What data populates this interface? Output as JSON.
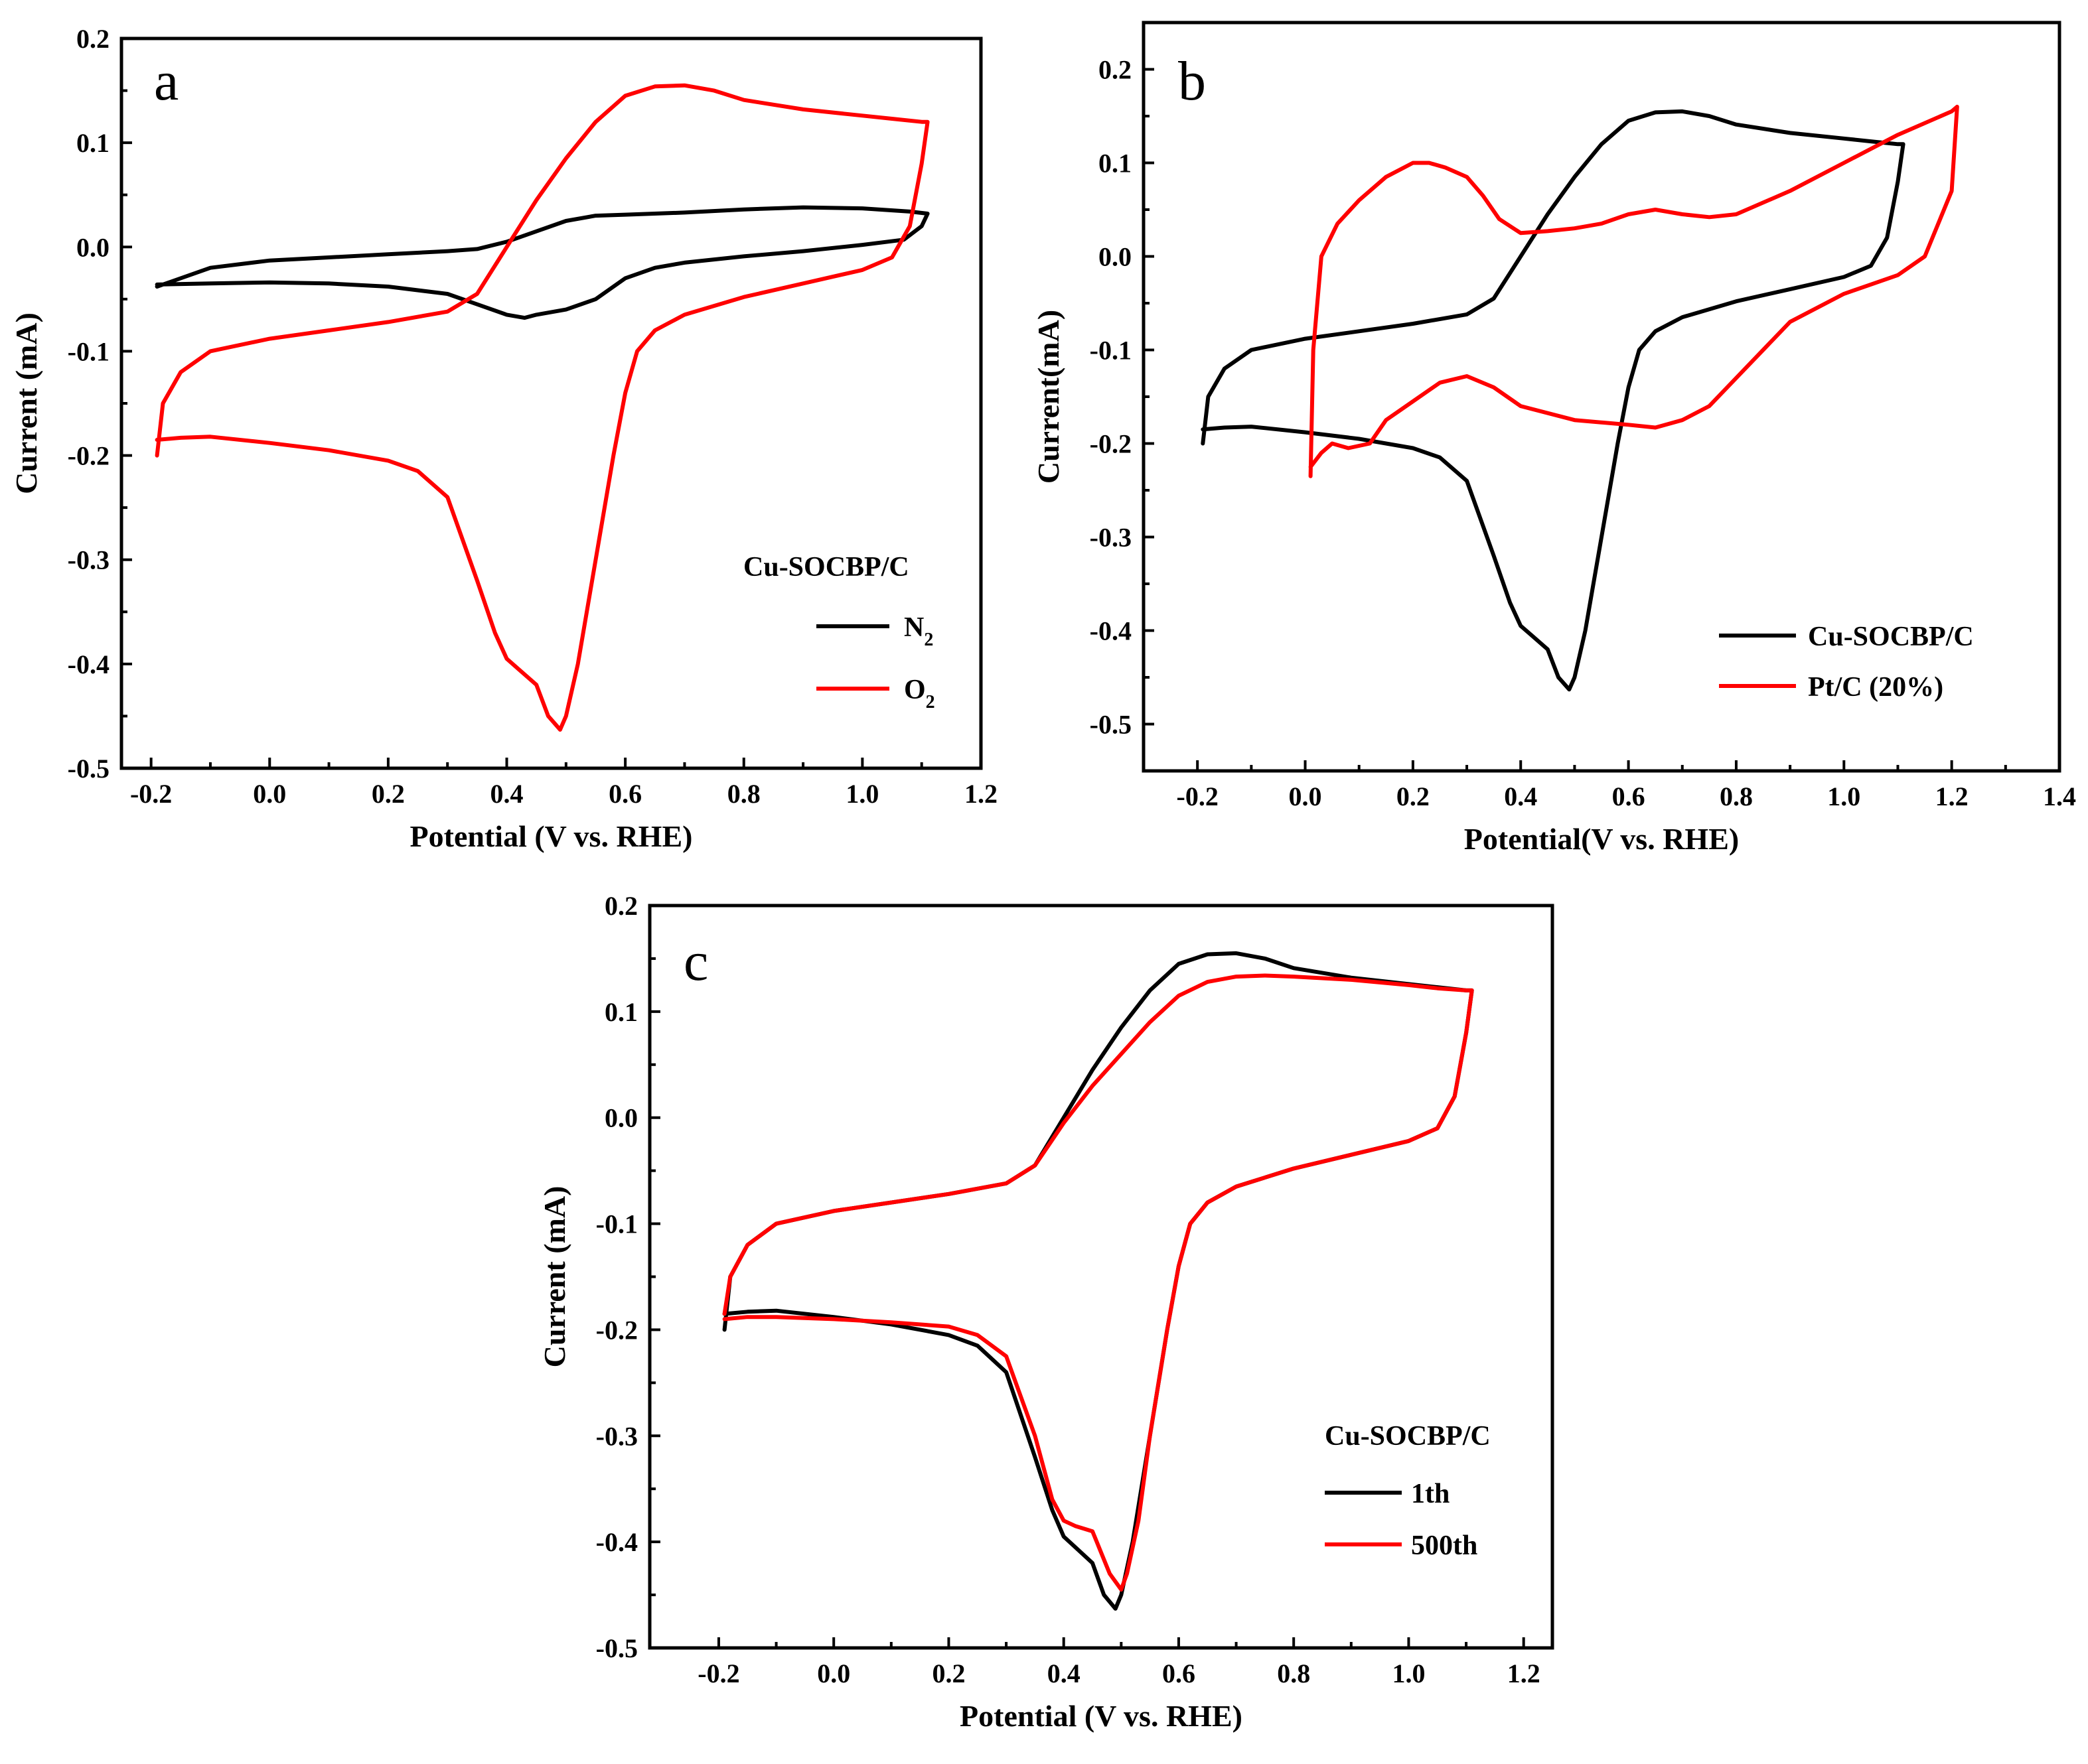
{
  "chart_data": [
    {
      "id": "a",
      "type": "line",
      "panel_label": "a",
      "xlabel": "Potential (V vs. RHE)",
      "ylabel": "Current (mA)",
      "xlim": [
        -0.25,
        1.2
      ],
      "ylim": [
        -0.5,
        0.2
      ],
      "x_ticks": [
        "-0.2",
        "0.0",
        "0.2",
        "0.4",
        "0.6",
        "0.8",
        "1.0",
        "1.2"
      ],
      "y_ticks": [
        "-0.5",
        "-0.4",
        "-0.3",
        "-0.2",
        "-0.1",
        "0.0",
        "0.1",
        "0.2"
      ],
      "legend_title": "Cu-SOCBP/C",
      "series": [
        {
          "name": "N2",
          "legend_main": "N",
          "legend_sub": "2",
          "color": "#000000",
          "x": [
            -0.19,
            -0.1,
            0.0,
            0.1,
            0.2,
            0.3,
            0.35,
            0.4,
            0.45,
            0.5,
            0.55,
            0.6,
            0.7,
            0.8,
            0.9,
            1.0,
            1.08,
            1.11,
            1.1,
            1.07,
            1.0,
            0.9,
            0.8,
            0.7,
            0.65,
            0.6,
            0.55,
            0.5,
            0.45,
            0.43,
            0.4,
            0.35,
            0.3,
            0.2,
            0.1,
            0.0,
            -0.1,
            -0.19
          ],
          "y": [
            -0.038,
            -0.02,
            -0.013,
            -0.01,
            -0.007,
            -0.004,
            -0.002,
            0.005,
            0.015,
            0.025,
            0.03,
            0.031,
            0.033,
            0.036,
            0.038,
            0.037,
            0.034,
            0.032,
            0.02,
            0.007,
            0.002,
            -0.004,
            -0.009,
            -0.015,
            -0.02,
            -0.03,
            -0.05,
            -0.06,
            -0.065,
            -0.068,
            -0.065,
            -0.055,
            -0.045,
            -0.038,
            -0.035,
            -0.034,
            -0.035,
            -0.036
          ]
        },
        {
          "name": "O2",
          "legend_main": "O",
          "legend_sub": "2",
          "color": "#ff0000",
          "x": [
            -0.19,
            -0.18,
            -0.15,
            -0.1,
            0.0,
            0.1,
            0.2,
            0.3,
            0.35,
            0.4,
            0.45,
            0.5,
            0.55,
            0.6,
            0.65,
            0.7,
            0.75,
            0.8,
            0.9,
            1.0,
            1.05,
            1.1,
            1.11,
            1.1,
            1.08,
            1.05,
            1.0,
            0.9,
            0.8,
            0.7,
            0.65,
            0.62,
            0.6,
            0.58,
            0.55,
            0.52,
            0.5,
            0.49,
            0.47,
            0.45,
            0.42,
            0.4,
            0.38,
            0.35,
            0.3,
            0.25,
            0.2,
            0.1,
            0.0,
            -0.1,
            -0.15,
            -0.19
          ],
          "y": [
            -0.2,
            -0.15,
            -0.12,
            -0.1,
            -0.088,
            -0.08,
            -0.072,
            -0.062,
            -0.045,
            0.0,
            0.045,
            0.085,
            0.12,
            0.145,
            0.154,
            0.155,
            0.15,
            0.141,
            0.132,
            0.126,
            0.123,
            0.12,
            0.12,
            0.08,
            0.02,
            -0.01,
            -0.022,
            -0.035,
            -0.048,
            -0.065,
            -0.08,
            -0.1,
            -0.14,
            -0.2,
            -0.3,
            -0.4,
            -0.45,
            -0.463,
            -0.45,
            -0.42,
            -0.405,
            -0.395,
            -0.37,
            -0.32,
            -0.24,
            -0.215,
            -0.205,
            -0.195,
            -0.188,
            -0.182,
            -0.183,
            -0.185
          ]
        }
      ]
    },
    {
      "id": "b",
      "type": "line",
      "panel_label": "b",
      "xlabel": "Potential(V vs. RHE)",
      "ylabel": "Current(mA)",
      "xlim": [
        -0.3,
        1.4
      ],
      "ylim": [
        -0.55,
        0.25
      ],
      "x_ticks": [
        "-0.2",
        "0.0",
        "0.2",
        "0.4",
        "0.6",
        "0.8",
        "1.0",
        "1.2",
        "1.4"
      ],
      "y_ticks": [
        "-0.5",
        "-0.4",
        "-0.3",
        "-0.2",
        "-0.1",
        "0.0",
        "0.1",
        "0.2"
      ],
      "legend_title": "",
      "series": [
        {
          "name": "Cu-SOCBP/C",
          "legend_main": "Cu-SOCBP/C",
          "legend_sub": "",
          "color": "#000000",
          "x": [
            -0.19,
            -0.18,
            -0.15,
            -0.1,
            0.0,
            0.1,
            0.2,
            0.3,
            0.35,
            0.4,
            0.45,
            0.5,
            0.55,
            0.6,
            0.65,
            0.7,
            0.75,
            0.8,
            0.9,
            1.0,
            1.05,
            1.1,
            1.11,
            1.1,
            1.08,
            1.05,
            1.0,
            0.9,
            0.8,
            0.7,
            0.65,
            0.62,
            0.6,
            0.58,
            0.55,
            0.52,
            0.5,
            0.49,
            0.47,
            0.45,
            0.42,
            0.4,
            0.38,
            0.35,
            0.3,
            0.25,
            0.2,
            0.1,
            0.0,
            -0.1,
            -0.15,
            -0.19
          ],
          "y": [
            -0.2,
            -0.15,
            -0.12,
            -0.1,
            -0.088,
            -0.08,
            -0.072,
            -0.062,
            -0.045,
            0.0,
            0.045,
            0.085,
            0.12,
            0.145,
            0.154,
            0.155,
            0.15,
            0.141,
            0.132,
            0.126,
            0.123,
            0.12,
            0.12,
            0.08,
            0.02,
            -0.01,
            -0.022,
            -0.035,
            -0.048,
            -0.065,
            -0.08,
            -0.1,
            -0.14,
            -0.2,
            -0.3,
            -0.4,
            -0.45,
            -0.463,
            -0.45,
            -0.42,
            -0.405,
            -0.395,
            -0.37,
            -0.32,
            -0.24,
            -0.215,
            -0.205,
            -0.195,
            -0.188,
            -0.182,
            -0.183,
            -0.185
          ]
        },
        {
          "name": "Pt/C (20%)",
          "legend_main": "Pt/C (20%)",
          "legend_sub": "",
          "color": "#ff0000",
          "x": [
            0.01,
            0.015,
            0.03,
            0.06,
            0.1,
            0.15,
            0.2,
            0.23,
            0.26,
            0.3,
            0.33,
            0.36,
            0.4,
            0.45,
            0.5,
            0.55,
            0.6,
            0.65,
            0.7,
            0.75,
            0.8,
            0.9,
            1.0,
            1.1,
            1.2,
            1.21,
            1.2,
            1.15,
            1.1,
            1.05,
            1.0,
            0.9,
            0.85,
            0.8,
            0.75,
            0.7,
            0.65,
            0.6,
            0.5,
            0.4,
            0.35,
            0.3,
            0.25,
            0.2,
            0.15,
            0.12,
            0.08,
            0.05,
            0.03,
            0.01
          ],
          "y": [
            -0.235,
            -0.1,
            0.0,
            0.035,
            0.06,
            0.085,
            0.1,
            0.1,
            0.095,
            0.085,
            0.065,
            0.04,
            0.025,
            0.027,
            0.03,
            0.035,
            0.045,
            0.05,
            0.045,
            0.042,
            0.045,
            0.07,
            0.1,
            0.13,
            0.155,
            0.16,
            0.07,
            0.0,
            -0.02,
            -0.03,
            -0.04,
            -0.07,
            -0.1,
            -0.13,
            -0.16,
            -0.175,
            -0.183,
            -0.18,
            -0.175,
            -0.16,
            -0.14,
            -0.128,
            -0.135,
            -0.155,
            -0.175,
            -0.2,
            -0.205,
            -0.2,
            -0.21,
            -0.225
          ]
        }
      ]
    },
    {
      "id": "c",
      "type": "line",
      "panel_label": "c",
      "xlabel": "Potential (V vs. RHE)",
      "ylabel": "Current (mA)",
      "xlim": [
        -0.32,
        1.25
      ],
      "ylim": [
        -0.5,
        0.2
      ],
      "x_ticks": [
        "-0.2",
        "0.0",
        "0.2",
        "0.4",
        "0.6",
        "0.8",
        "1.0",
        "1.2"
      ],
      "y_ticks": [
        "-0.5",
        "-0.4",
        "-0.3",
        "-0.2",
        "-0.1",
        "0.0",
        "0.1",
        "0.2"
      ],
      "legend_title": "Cu-SOCBP/C",
      "series": [
        {
          "name": "1th",
          "legend_main": "1th",
          "legend_sub": "",
          "color": "#000000",
          "x": [
            -0.19,
            -0.18,
            -0.15,
            -0.1,
            0.0,
            0.1,
            0.2,
            0.3,
            0.35,
            0.4,
            0.45,
            0.5,
            0.55,
            0.6,
            0.65,
            0.7,
            0.75,
            0.8,
            0.9,
            1.0,
            1.05,
            1.1,
            1.11,
            1.1,
            1.08,
            1.05,
            1.0,
            0.9,
            0.8,
            0.7,
            0.65,
            0.62,
            0.6,
            0.58,
            0.55,
            0.52,
            0.5,
            0.49,
            0.47,
            0.45,
            0.42,
            0.4,
            0.38,
            0.35,
            0.3,
            0.25,
            0.2,
            0.1,
            0.0,
            -0.1,
            -0.15,
            -0.19
          ],
          "y": [
            -0.2,
            -0.15,
            -0.12,
            -0.1,
            -0.088,
            -0.08,
            -0.072,
            -0.062,
            -0.045,
            0.0,
            0.045,
            0.085,
            0.12,
            0.145,
            0.154,
            0.155,
            0.15,
            0.141,
            0.132,
            0.126,
            0.123,
            0.12,
            0.12,
            0.08,
            0.02,
            -0.01,
            -0.022,
            -0.035,
            -0.048,
            -0.065,
            -0.08,
            -0.1,
            -0.14,
            -0.2,
            -0.3,
            -0.4,
            -0.45,
            -0.463,
            -0.45,
            -0.42,
            -0.405,
            -0.395,
            -0.37,
            -0.32,
            -0.24,
            -0.215,
            -0.205,
            -0.195,
            -0.188,
            -0.182,
            -0.183,
            -0.185
          ]
        },
        {
          "name": "500th",
          "legend_main": "500th",
          "legend_sub": "",
          "color": "#ff0000",
          "x": [
            -0.19,
            -0.18,
            -0.15,
            -0.1,
            0.0,
            0.1,
            0.2,
            0.3,
            0.35,
            0.4,
            0.45,
            0.5,
            0.55,
            0.6,
            0.65,
            0.7,
            0.75,
            0.8,
            0.9,
            1.0,
            1.05,
            1.1,
            1.11,
            1.1,
            1.08,
            1.05,
            1.0,
            0.9,
            0.8,
            0.7,
            0.65,
            0.62,
            0.6,
            0.58,
            0.55,
            0.53,
            0.51,
            0.5,
            0.48,
            0.45,
            0.42,
            0.4,
            0.38,
            0.35,
            0.3,
            0.25,
            0.2,
            0.1,
            0.0,
            -0.1,
            -0.15,
            -0.19
          ],
          "y": [
            -0.185,
            -0.15,
            -0.12,
            -0.1,
            -0.088,
            -0.08,
            -0.072,
            -0.062,
            -0.045,
            -0.005,
            0.03,
            0.06,
            0.09,
            0.115,
            0.128,
            0.133,
            0.134,
            0.133,
            0.13,
            0.125,
            0.122,
            0.12,
            0.12,
            0.08,
            0.02,
            -0.01,
            -0.022,
            -0.035,
            -0.048,
            -0.065,
            -0.08,
            -0.1,
            -0.14,
            -0.2,
            -0.3,
            -0.38,
            -0.43,
            -0.445,
            -0.43,
            -0.39,
            -0.385,
            -0.38,
            -0.36,
            -0.3,
            -0.225,
            -0.205,
            -0.197,
            -0.193,
            -0.19,
            -0.188,
            -0.188,
            -0.19
          ]
        }
      ]
    }
  ]
}
